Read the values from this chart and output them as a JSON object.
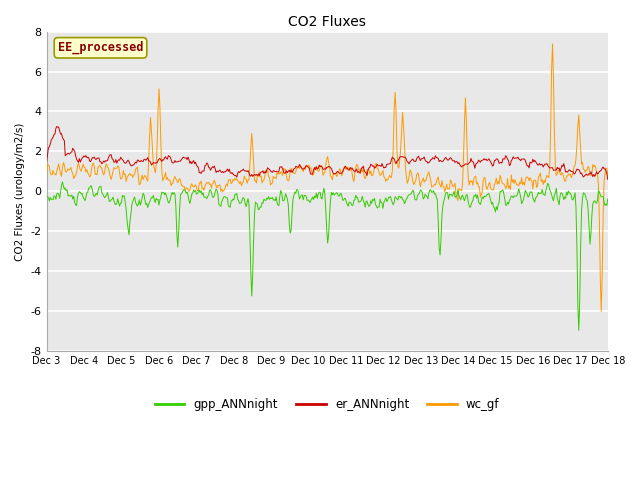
{
  "title": "CO2 Fluxes",
  "ylabel": "CO2 Fluxes (urology/m2/s)",
  "ylim": [
    -8,
    8
  ],
  "yticks": [
    -8,
    -6,
    -4,
    -2,
    0,
    2,
    4,
    6,
    8
  ],
  "xlabel_dates": [
    "Dec 3",
    "Dec 4",
    "Dec 5",
    "Dec 6",
    "Dec 7",
    "Dec 8",
    "Dec 9",
    "Dec 10",
    "Dec 11",
    "Dec 12",
    "Dec 13",
    "Dec 14",
    "Dec 15",
    "Dec 16",
    "Dec 17",
    "Dec 18"
  ],
  "bg_color": "#e8e8e8",
  "grid_color": "#ffffff",
  "line_green": "#33cc00",
  "line_red": "#cc0000",
  "line_orange": "#ff9900",
  "legend_label": "EE_processed",
  "legend_box_color": "#ffffcc",
  "legend_box_edge": "#999900",
  "legend_text_color": "#880000",
  "n_points": 600
}
